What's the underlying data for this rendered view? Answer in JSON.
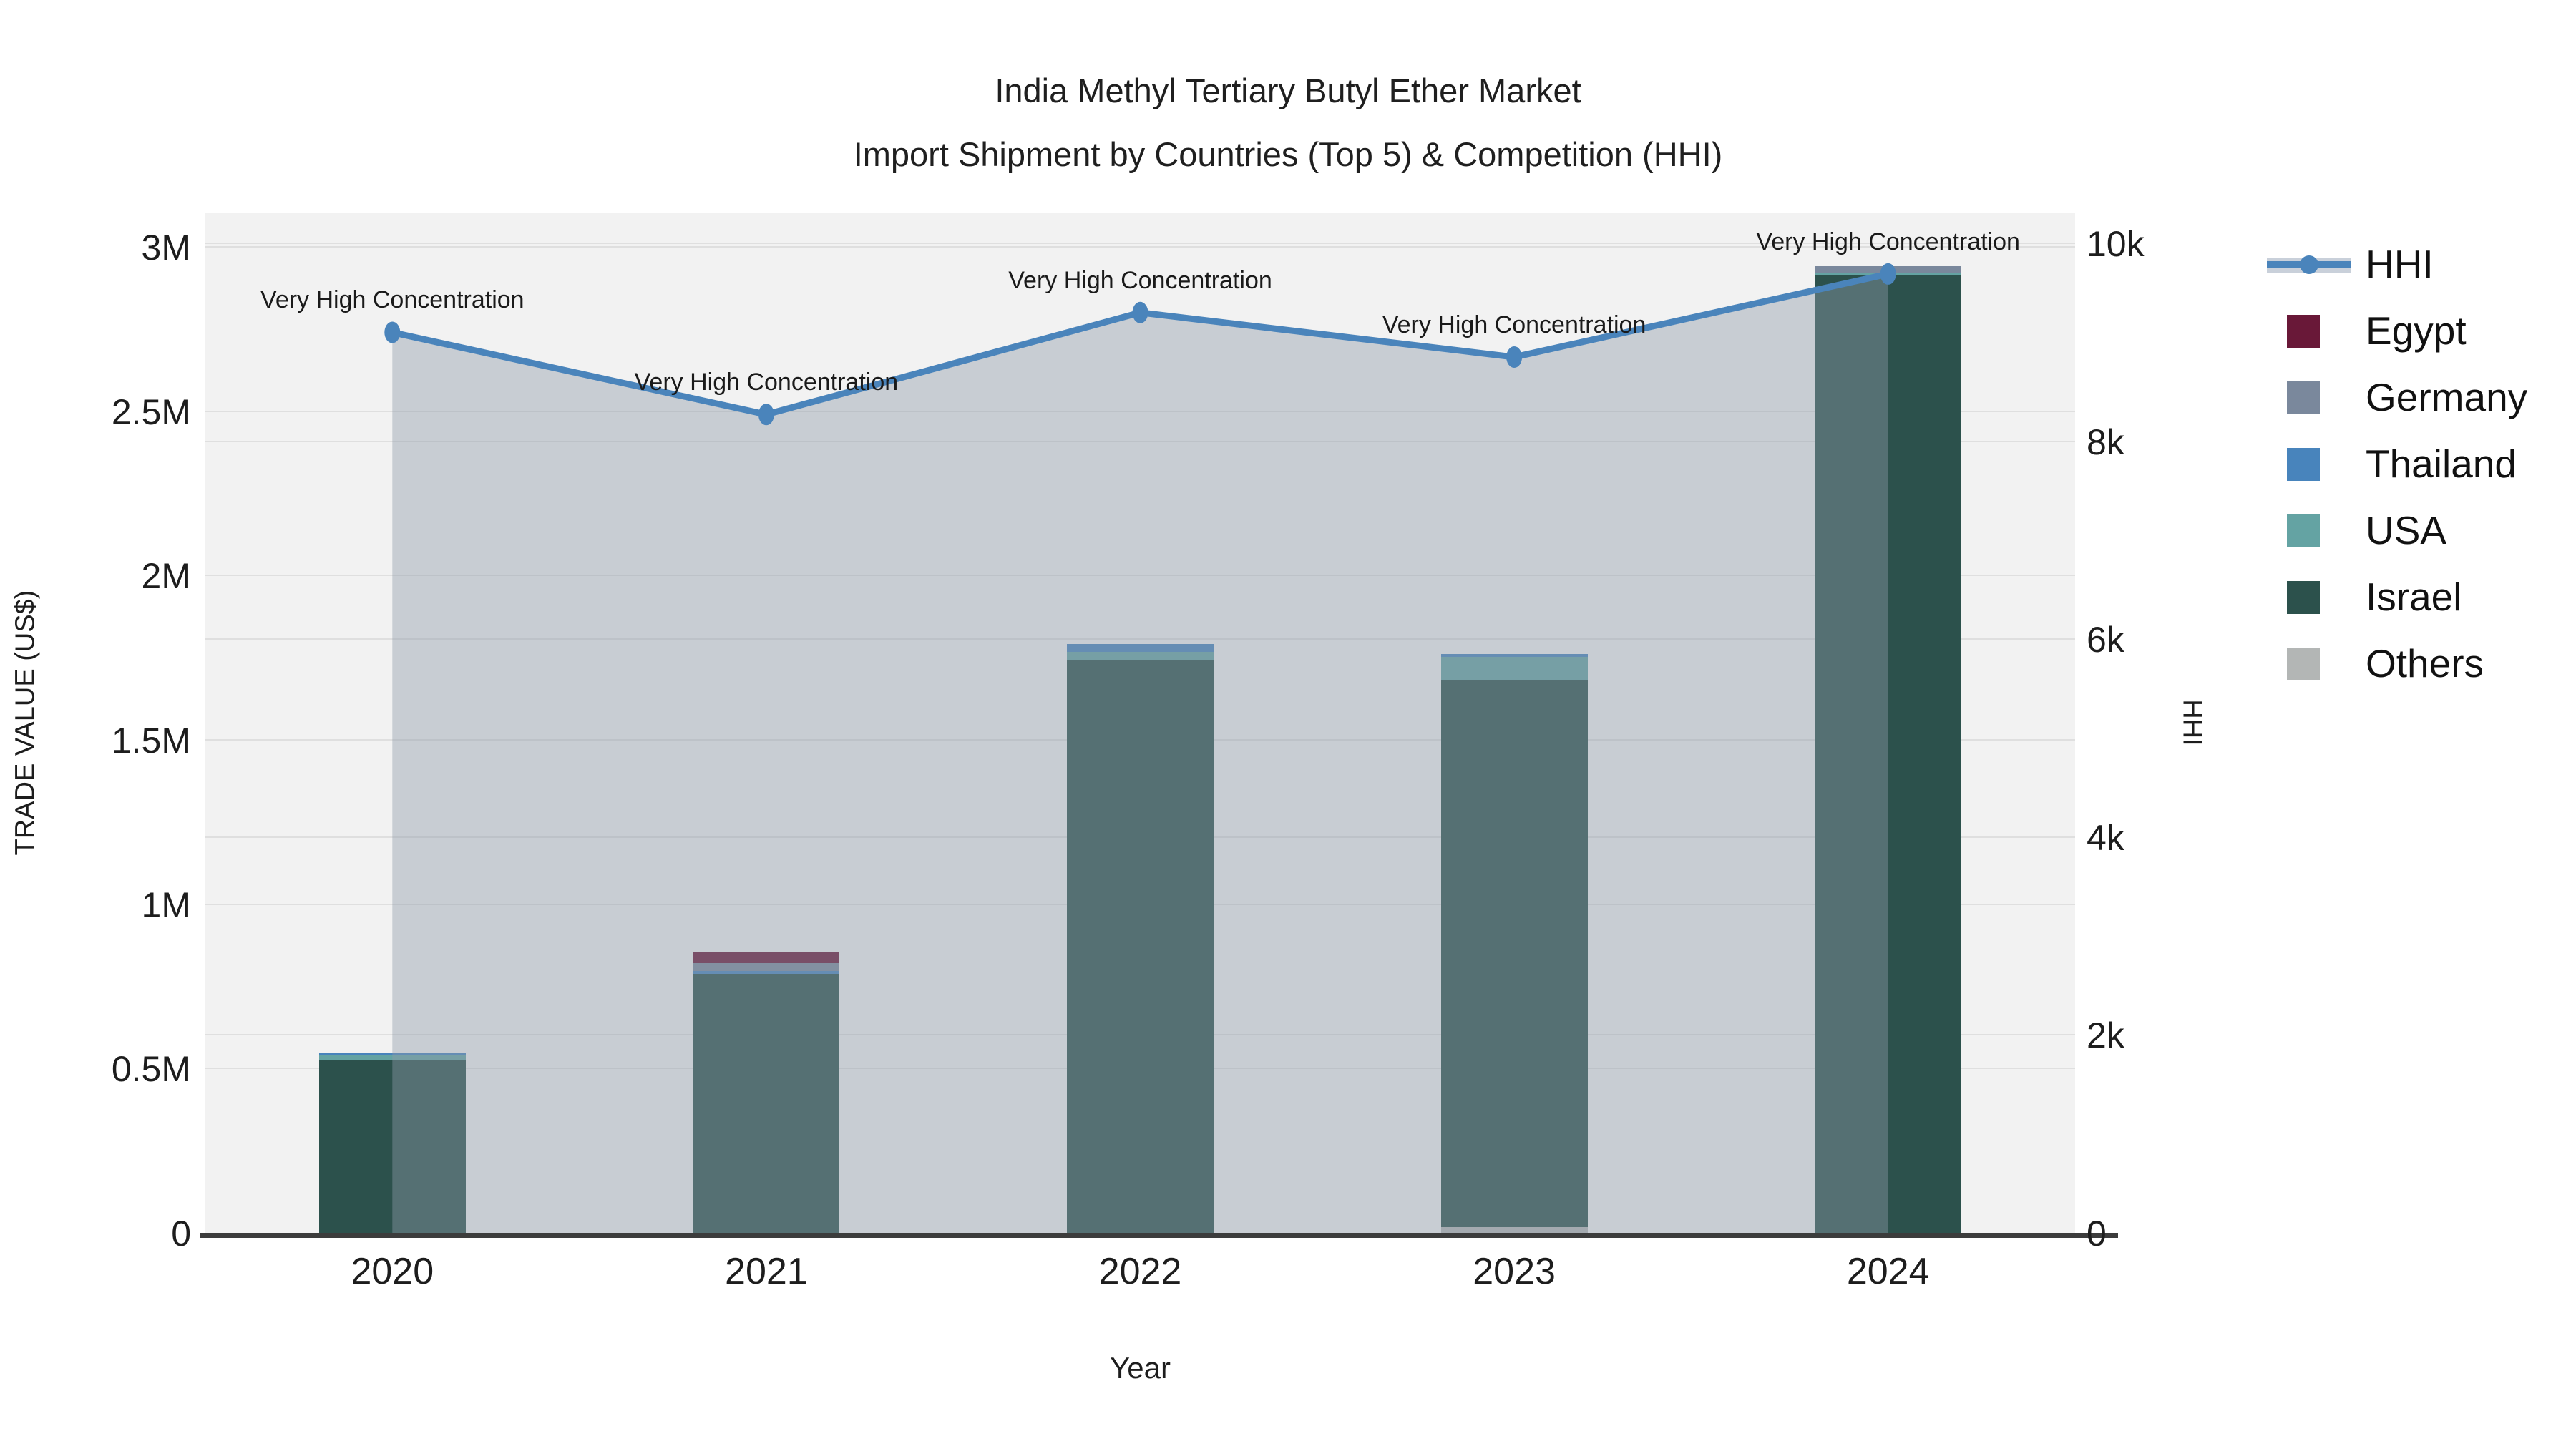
{
  "title": {
    "line1": "India Methyl Tertiary Butyl Ether Market",
    "line2": "Import Shipment by Countries (Top 5) & Competition (HHI)"
  },
  "axes": {
    "x": {
      "title": "Year",
      "categories": [
        "2020",
        "2021",
        "2022",
        "2023",
        "2024"
      ]
    },
    "y_left": {
      "title": "TRADE VALUE (US$)",
      "max": 3000000,
      "ticks": [
        {
          "label": "0",
          "value": 0
        },
        {
          "label": "0.5M",
          "value": 500000
        },
        {
          "label": "1M",
          "value": 1000000
        },
        {
          "label": "1.5M",
          "value": 1500000
        },
        {
          "label": "2M",
          "value": 2000000
        },
        {
          "label": "2.5M",
          "value": 2500000
        },
        {
          "label": "3M",
          "value": 3000000
        }
      ]
    },
    "y_right": {
      "title": "HHI",
      "max": 10000,
      "ticks": [
        {
          "label": "0",
          "value": 0
        },
        {
          "label": "2k",
          "value": 2000
        },
        {
          "label": "4k",
          "value": 4000
        },
        {
          "label": "6k",
          "value": 6000
        },
        {
          "label": "8k",
          "value": 8000
        },
        {
          "label": "10k",
          "value": 10000
        }
      ]
    }
  },
  "legend": [
    {
      "label": "HHI",
      "type": "line",
      "color": "#4a84bb"
    },
    {
      "label": "Egypt",
      "type": "patch",
      "color": "#691838"
    },
    {
      "label": "Germany",
      "type": "patch",
      "color": "#7a889c"
    },
    {
      "label": "Thailand",
      "type": "patch",
      "color": "#4884bc"
    },
    {
      "label": "USA",
      "type": "patch",
      "color": "#64a3a3"
    },
    {
      "label": "Israel",
      "type": "patch",
      "color": "#2c514c"
    },
    {
      "label": "Others",
      "type": "patch",
      "color": "#b3b6b5"
    }
  ],
  "chart_data": {
    "type": "bar+line",
    "title": "India Methyl Tertiary Butyl Ether Market — Import Shipment by Countries (Top 5) & Competition (HHI)",
    "xlabel": "Year",
    "ylabel_left": "TRADE VALUE (US$)",
    "ylabel_right": "HHI",
    "ylim_left": [
      0,
      3000000
    ],
    "ylim_right": [
      0,
      10000
    ],
    "grid": true,
    "legend_position": "right",
    "categories": [
      "2020",
      "2021",
      "2022",
      "2023",
      "2024"
    ],
    "bar_series": [
      {
        "name": "Others",
        "color": "#b3b6b5",
        "values": [
          0,
          0,
          0,
          17000,
          0
        ]
      },
      {
        "name": "Israel",
        "color": "#2c514c",
        "values": [
          525000,
          788000,
          1744000,
          1665000,
          2913000
        ]
      },
      {
        "name": "USA",
        "color": "#64a3a3",
        "values": [
          15000,
          0,
          24000,
          70000,
          7000
        ]
      },
      {
        "name": "Thailand",
        "color": "#4884bc",
        "values": [
          6000,
          9000,
          24000,
          9000,
          0
        ]
      },
      {
        "name": "Germany",
        "color": "#7a889c",
        "values": [
          0,
          24000,
          0,
          0,
          22000
        ]
      },
      {
        "name": "Egypt",
        "color": "#691838",
        "values": [
          0,
          33000,
          0,
          0,
          0
        ]
      }
    ],
    "bar_totals": [
      546000,
      854000,
      1792000,
      1761000,
      2942000
    ],
    "line_series": {
      "name": "HHI",
      "axis": "right",
      "color": "#4a84bb",
      "area_color": "rgba(144,155,170,0.42)",
      "values": [
        9100,
        8270,
        9300,
        8850,
        9690
      ]
    },
    "annotations": [
      "Very High Concentration",
      "Very High Concentration",
      "Very High Concentration",
      "Very High Concentration",
      "Very High Concentration"
    ]
  }
}
